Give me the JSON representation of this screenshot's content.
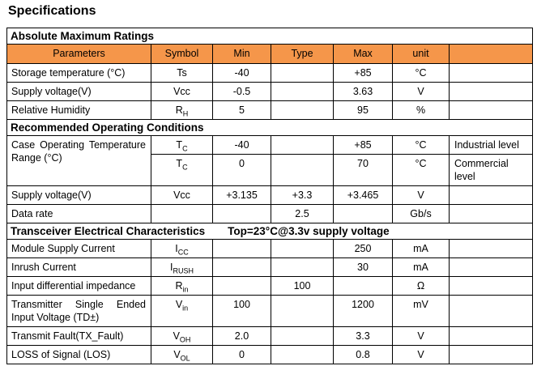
{
  "title": "Specifications",
  "colors": {
    "header_bg": "#F5964A",
    "border": "#000000",
    "text": "#000000"
  },
  "columns": {
    "labels": [
      "Parameters",
      "Symbol",
      "Min",
      "Type",
      "Max",
      "unit",
      ""
    ]
  },
  "rows": [
    {
      "kind": "section",
      "title": "Absolute Maximum Ratings",
      "note": ""
    },
    {
      "kind": "header"
    },
    {
      "kind": "data",
      "param": {
        "lines": [
          "Storage temperature (°C)"
        ],
        "justify": false,
        "rowspan": 1
      },
      "symbol": {
        "base": "Ts",
        "sub": ""
      },
      "min": "-40",
      "typ": "",
      "max": "+85",
      "unit": "°C",
      "note": ""
    },
    {
      "kind": "data",
      "param": {
        "lines": [
          "Supply voltage(V)"
        ],
        "justify": false,
        "rowspan": 1
      },
      "symbol": {
        "base": "Vcc",
        "sub": ""
      },
      "min": "-0.5",
      "typ": "",
      "max": "3.63",
      "unit": "V",
      "note": ""
    },
    {
      "kind": "data",
      "param": {
        "lines": [
          "Relative Humidity"
        ],
        "justify": false,
        "rowspan": 1
      },
      "symbol": {
        "base": "R",
        "sub": "H"
      },
      "min": "5",
      "typ": "",
      "max": "95",
      "unit": "%",
      "note": ""
    },
    {
      "kind": "section",
      "title": "Recommended Operating Conditions",
      "note": ""
    },
    {
      "kind": "data",
      "param": {
        "lines": [
          "Case Operating Temperature",
          "Range (°C)"
        ],
        "justify": true,
        "rowspan": 2
      },
      "symbol": {
        "base": "T",
        "sub": "C"
      },
      "min": "-40",
      "typ": "",
      "max": "+85",
      "unit": "°C",
      "note": "Industrial level"
    },
    {
      "kind": "data",
      "param": null,
      "symbol": {
        "base": "T",
        "sub": "C"
      },
      "min": "0",
      "typ": "",
      "max": "70",
      "unit": "°C",
      "note": "Commercial level"
    },
    {
      "kind": "data",
      "param": {
        "lines": [
          "Supply voltage(V)"
        ],
        "justify": false,
        "rowspan": 1
      },
      "symbol": {
        "base": "Vcc",
        "sub": ""
      },
      "min": "+3.135",
      "typ": "+3.3",
      "max": "+3.465",
      "unit": "V",
      "note": ""
    },
    {
      "kind": "data",
      "param": {
        "lines": [
          "Data rate"
        ],
        "justify": false,
        "rowspan": 1
      },
      "symbol": {
        "base": "",
        "sub": ""
      },
      "min": "",
      "typ": "2.5",
      "max": "",
      "unit": "Gb/s",
      "note": ""
    },
    {
      "kind": "section",
      "title": "Transceiver Electrical Characteristics",
      "note": "Top=23°C@3.3v supply voltage"
    },
    {
      "kind": "data",
      "param": {
        "lines": [
          "Module Supply Current"
        ],
        "justify": false,
        "rowspan": 1
      },
      "symbol": {
        "base": "I",
        "sub": "CC"
      },
      "min": "",
      "typ": "",
      "max": "250",
      "unit": "mA",
      "note": ""
    },
    {
      "kind": "data",
      "param": {
        "lines": [
          "Inrush Current"
        ],
        "justify": false,
        "rowspan": 1
      },
      "symbol": {
        "base": "I",
        "sub": "RUSH"
      },
      "min": "",
      "typ": "",
      "max": "30",
      "unit": "mA",
      "note": ""
    },
    {
      "kind": "data",
      "param": {
        "lines": [
          "Input differential impedance"
        ],
        "justify": false,
        "rowspan": 1
      },
      "symbol": {
        "base": "R",
        "sub": "in"
      },
      "min": "",
      "typ": "100",
      "max": "",
      "unit": "Ω",
      "note": ""
    },
    {
      "kind": "data",
      "param": {
        "lines": [
          "Transmitter Single Ended",
          "Input Voltage (TD±)"
        ],
        "justify": true,
        "rowspan": 1
      },
      "symbol": {
        "base": "V",
        "sub": "in"
      },
      "min": "100",
      "typ": "",
      "max": "1200",
      "unit": "mV",
      "note": ""
    },
    {
      "kind": "data",
      "param": {
        "lines": [
          "Transmit Fault(TX_Fault)"
        ],
        "justify": false,
        "rowspan": 1
      },
      "symbol": {
        "base": "V",
        "sub": "OH"
      },
      "min": "2.0",
      "typ": "",
      "max": "3.3",
      "unit": "V",
      "note": ""
    },
    {
      "kind": "data",
      "param": {
        "lines": [
          "LOSS of Signal (LOS)"
        ],
        "justify": false,
        "rowspan": 1
      },
      "symbol": {
        "base": "V",
        "sub": "OL"
      },
      "min": "0",
      "typ": "",
      "max": "0.8",
      "unit": "V",
      "note": ""
    }
  ]
}
